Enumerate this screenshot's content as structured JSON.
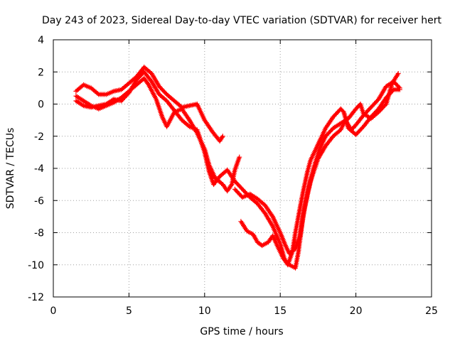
{
  "chart_data": {
    "type": "scatter",
    "title": "Day 243 of 2023, Sidereal Day-to-day VTEC variation (SDTVAR) for receiver hert",
    "xlabel": "GPS time / hours",
    "ylabel": "SDTVAR / TECUs",
    "xlim": [
      0,
      25
    ],
    "ylim": [
      -12,
      4
    ],
    "x_ticks": [
      0,
      5,
      10,
      15,
      20,
      25
    ],
    "y_ticks": [
      -12,
      -10,
      -8,
      -6,
      -4,
      -2,
      0,
      2,
      4
    ],
    "grid": true,
    "marker": "+",
    "color": "#ff0000",
    "series": [
      {
        "points": [
          [
            1.5,
            0.8
          ],
          [
            2.0,
            1.2
          ],
          [
            2.5,
            1.0
          ],
          [
            3.0,
            0.6
          ],
          [
            3.5,
            0.6
          ],
          [
            4.0,
            0.8
          ],
          [
            4.5,
            0.9
          ],
          [
            5.0,
            1.3
          ],
          [
            5.5,
            1.7
          ],
          [
            6.0,
            2.3
          ],
          [
            6.5,
            1.9
          ],
          [
            7.0,
            1.1
          ],
          [
            7.5,
            0.6
          ],
          [
            8.0,
            0.2
          ],
          [
            8.5,
            -0.2
          ],
          [
            9.0,
            -0.1
          ],
          [
            9.5,
            0.0
          ],
          [
            10.0,
            -1.0
          ],
          [
            10.5,
            -1.7
          ],
          [
            11.0,
            -2.3
          ],
          [
            11.2,
            -2.0
          ]
        ]
      },
      {
        "points": [
          [
            1.5,
            0.5
          ],
          [
            2.0,
            0.2
          ],
          [
            2.5,
            -0.1
          ],
          [
            3.0,
            -0.3
          ],
          [
            3.5,
            -0.1
          ],
          [
            4.0,
            0.1
          ],
          [
            4.5,
            0.4
          ],
          [
            5.0,
            0.8
          ],
          [
            5.5,
            1.2
          ],
          [
            6.0,
            1.6
          ],
          [
            6.3,
            1.2
          ],
          [
            6.8,
            0.3
          ],
          [
            7.2,
            -0.8
          ],
          [
            7.5,
            -1.4
          ],
          [
            8.0,
            -0.5
          ],
          [
            8.5,
            -0.3
          ],
          [
            9.0,
            -1.0
          ],
          [
            9.5,
            -1.8
          ],
          [
            10.0,
            -2.8
          ],
          [
            10.3,
            -3.8
          ],
          [
            10.7,
            -4.6
          ],
          [
            11.2,
            -5.0
          ],
          [
            11.5,
            -5.4
          ],
          [
            11.8,
            -5.0
          ],
          [
            12.0,
            -4.1
          ],
          [
            12.3,
            -3.3
          ]
        ]
      },
      {
        "points": [
          [
            1.5,
            0.2
          ],
          [
            2.0,
            -0.1
          ],
          [
            2.5,
            -0.2
          ],
          [
            3.0,
            -0.1
          ],
          [
            3.5,
            0.0
          ],
          [
            4.0,
            0.3
          ],
          [
            4.5,
            0.2
          ],
          [
            5.0,
            0.7
          ],
          [
            5.5,
            1.5
          ],
          [
            6.0,
            2.0
          ],
          [
            6.5,
            1.4
          ],
          [
            7.0,
            0.6
          ],
          [
            7.5,
            0.2
          ],
          [
            8.0,
            -0.4
          ],
          [
            8.5,
            -1.0
          ],
          [
            9.0,
            -1.4
          ],
          [
            9.5,
            -1.6
          ],
          [
            10.0,
            -3.0
          ],
          [
            10.3,
            -4.2
          ],
          [
            10.6,
            -5.0
          ],
          [
            11.0,
            -4.5
          ],
          [
            11.5,
            -4.1
          ],
          [
            12.0,
            -4.8
          ],
          [
            12.5,
            -5.3
          ],
          [
            13.0,
            -5.8
          ],
          [
            13.5,
            -6.2
          ],
          [
            14.0,
            -6.8
          ],
          [
            14.5,
            -7.6
          ],
          [
            15.0,
            -8.7
          ],
          [
            15.3,
            -9.7
          ],
          [
            15.5,
            -10.0
          ],
          [
            15.8,
            -9.2
          ],
          [
            16.0,
            -8.0
          ],
          [
            16.2,
            -7.0
          ],
          [
            16.5,
            -5.5
          ],
          [
            16.8,
            -4.2
          ],
          [
            17.0,
            -3.5
          ],
          [
            17.5,
            -2.5
          ],
          [
            18.0,
            -1.5
          ],
          [
            18.5,
            -0.8
          ],
          [
            19.0,
            -0.3
          ],
          [
            19.2,
            -0.5
          ],
          [
            19.5,
            -1.5
          ],
          [
            20.0,
            -1.9
          ],
          [
            20.5,
            -1.4
          ],
          [
            21.0,
            -0.8
          ],
          [
            21.5,
            -0.3
          ],
          [
            22.0,
            0.4
          ],
          [
            22.5,
            0.9
          ],
          [
            22.9,
            0.9
          ]
        ]
      },
      {
        "points": [
          [
            12.4,
            -7.3
          ],
          [
            12.8,
            -7.9
          ],
          [
            13.2,
            -8.1
          ],
          [
            13.5,
            -8.6
          ],
          [
            13.8,
            -8.8
          ],
          [
            14.2,
            -8.6
          ],
          [
            14.5,
            -8.2
          ],
          [
            14.8,
            -8.8
          ],
          [
            15.2,
            -9.6
          ],
          [
            15.6,
            -10.0
          ],
          [
            16.0,
            -10.2
          ],
          [
            16.2,
            -9.2
          ],
          [
            16.5,
            -7.0
          ],
          [
            16.8,
            -5.5
          ],
          [
            17.2,
            -4.0
          ],
          [
            17.6,
            -2.8
          ],
          [
            18.0,
            -2.0
          ],
          [
            18.5,
            -1.5
          ],
          [
            19.0,
            -1.2
          ],
          [
            19.5,
            -0.9
          ],
          [
            20.0,
            -0.3
          ],
          [
            20.3,
            0.0
          ],
          [
            20.5,
            -0.6
          ],
          [
            21.0,
            -0.9
          ],
          [
            21.5,
            -0.5
          ],
          [
            22.0,
            0.0
          ],
          [
            22.4,
            1.3
          ],
          [
            22.8,
            1.9
          ]
        ]
      },
      {
        "points": [
          [
            12.0,
            -5.3
          ],
          [
            12.5,
            -5.8
          ],
          [
            13.0,
            -5.6
          ],
          [
            13.5,
            -5.9
          ],
          [
            14.0,
            -6.3
          ],
          [
            14.5,
            -7.0
          ],
          [
            15.0,
            -8.0
          ],
          [
            15.3,
            -8.7
          ],
          [
            15.6,
            -9.3
          ],
          [
            16.0,
            -9.0
          ],
          [
            16.3,
            -8.2
          ],
          [
            16.6,
            -6.5
          ],
          [
            17.0,
            -4.8
          ],
          [
            17.5,
            -3.4
          ],
          [
            18.0,
            -2.6
          ],
          [
            18.5,
            -2.0
          ],
          [
            19.0,
            -1.6
          ],
          [
            19.3,
            -1.0
          ],
          [
            19.7,
            -1.6
          ],
          [
            20.0,
            -1.3
          ],
          [
            20.5,
            -0.7
          ],
          [
            21.0,
            -0.2
          ],
          [
            21.5,
            0.3
          ],
          [
            22.0,
            1.1
          ],
          [
            22.5,
            1.4
          ],
          [
            22.9,
            1.0
          ]
        ]
      }
    ]
  }
}
